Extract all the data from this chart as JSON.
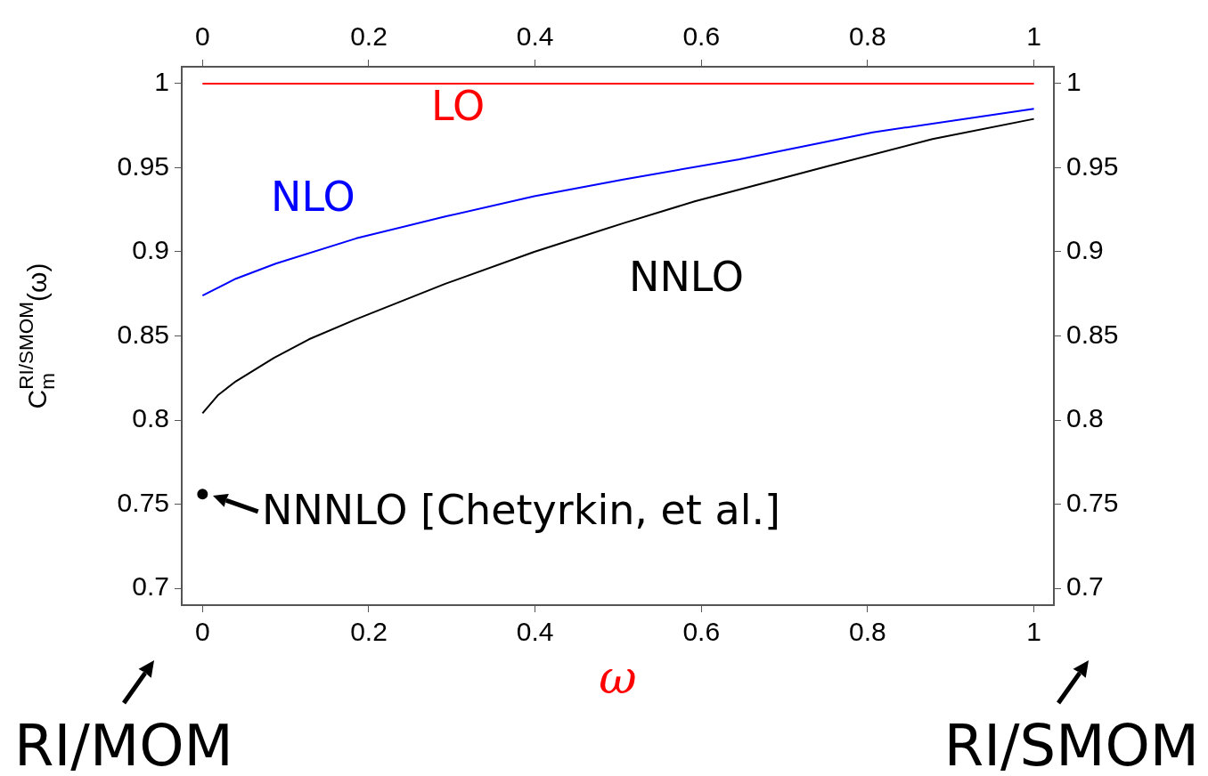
{
  "chart_data": {
    "type": "line",
    "ylabel": "C$_{m}$$^{RI/SMOM}$(ω)",
    "xlabel": "ω",
    "xlim": [
      -0.025,
      1.024
    ],
    "xticks": [
      0,
      0.2,
      0.4,
      0.6,
      0.8,
      1
    ],
    "x2lim": [
      -0.025,
      1.024
    ],
    "x2ticks": [
      0,
      0.2,
      0.4,
      0.6,
      0.8,
      1
    ],
    "ylim": [
      0.69,
      1.01
    ],
    "yticks": [
      0.7,
      0.75,
      0.8,
      0.85,
      0.9,
      0.95,
      1
    ],
    "y2lim": [
      0.69,
      1.01
    ],
    "y2ticks": [
      0.7,
      0.75,
      0.8,
      0.85,
      0.9,
      0.95,
      1
    ],
    "grid": false,
    "legend": false,
    "series": [
      {
        "name": "LO",
        "color": "#ff0000",
        "marker": "none",
        "x": [
          0,
          1
        ],
        "values": [
          1,
          1
        ]
      },
      {
        "name": "NLO",
        "color": "#0000ff",
        "marker": "none",
        "x": [
          0,
          0.04,
          0.088,
          0.185,
          0.292,
          0.399,
          0.506,
          0.646,
          0.806,
          1
        ],
        "values": [
          0.874,
          0.884,
          0.893,
          0.908,
          0.921,
          0.933,
          0.943,
          0.955,
          0.971,
          0.985
        ]
      },
      {
        "name": "NNLO",
        "color": "#000000",
        "marker": "none",
        "x": [
          0,
          0.019,
          0.04,
          0.086,
          0.128,
          0.185,
          0.292,
          0.399,
          0.506,
          0.592,
          0.753,
          0.878,
          1
        ],
        "values": [
          0.804,
          0.815,
          0.823,
          0.837,
          0.848,
          0.86,
          0.881,
          0.9,
          0.917,
          0.93,
          0.951,
          0.967,
          0.979
        ]
      },
      {
        "type": "scatter",
        "color": "#000000",
        "marker": "circle",
        "x": [
          0
        ],
        "values": [
          0.756
        ]
      }
    ],
    "annotations": [
      {
        "text": "NNNLO [Chetyrkin, et al.]",
        "x": 0,
        "y": 0.756
      },
      "RI/MOM",
      "RI/SMOM"
    ]
  }
}
